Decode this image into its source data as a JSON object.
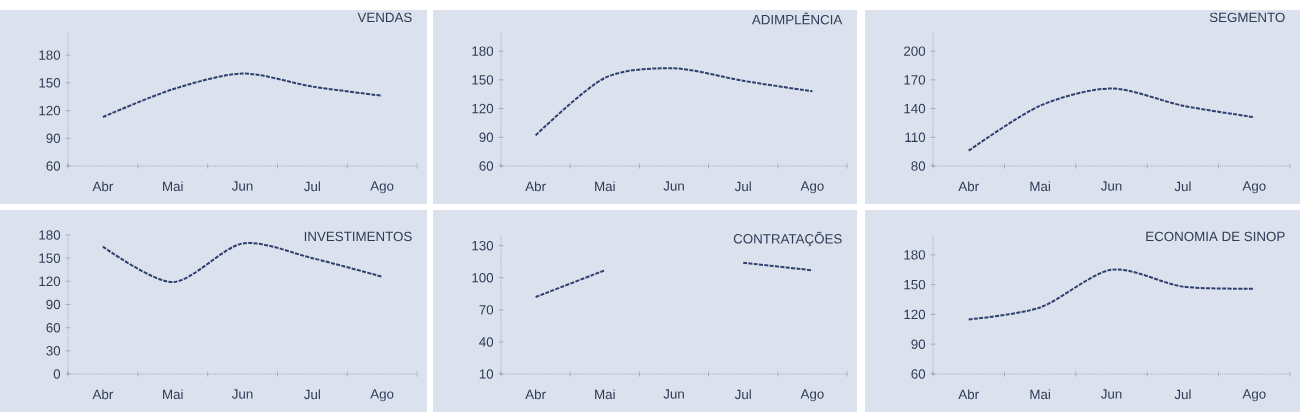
{
  "chart_data": [
    {
      "type": "line",
      "title": "VENDAS",
      "categories": [
        "Abr",
        "Mai",
        "Jun",
        "Jul",
        "Ago"
      ],
      "values": [
        113,
        143,
        160,
        146,
        136
      ],
      "color": "#2f3f6e",
      "line_style": "dashed",
      "ylim": [
        60,
        205
      ],
      "yticks": [
        60,
        90,
        120,
        150,
        180
      ]
    },
    {
      "type": "line",
      "title": "ADIMPLÊNCIA",
      "categories": [
        "Abr",
        "Mai",
        "Jun",
        "Jul",
        "Ago"
      ],
      "values": [
        92,
        152,
        162,
        149,
        138
      ],
      "color": "#2f3f6e",
      "line_style": "dashed",
      "ylim": [
        60,
        200
      ],
      "yticks": [
        60,
        90,
        120,
        150,
        180
      ]
    },
    {
      "type": "line",
      "title": "SEGMENTO",
      "categories": [
        "Abr",
        "Mai",
        "Jun",
        "Jul",
        "Ago"
      ],
      "values": [
        96,
        143,
        161,
        143,
        131
      ],
      "color": "#2f3f6e",
      "line_style": "dashed",
      "ylim": [
        80,
        220
      ],
      "yticks": [
        80,
        110,
        140,
        170,
        200
      ]
    },
    {
      "type": "line",
      "title": "INVESTIMENTOS",
      "categories": [
        "Abr",
        "Mai",
        "Jun",
        "Jul",
        "Ago"
      ],
      "values": [
        165,
        119,
        169,
        150,
        126
      ],
      "color": "#2f3f6e",
      "line_style": "dashed",
      "ylim": [
        0,
        180
      ],
      "yticks": [
        0,
        30,
        60,
        90,
        120,
        150,
        180
      ]
    },
    {
      "type": "line",
      "title": "CONTRATAÇÕES",
      "categories": [
        "Abr",
        "Mai",
        "Jun",
        "Jul",
        "Ago"
      ],
      "values": [
        82,
        107,
        null,
        114,
        107
      ],
      "color": "#2f3f6e",
      "line_style": "dashed",
      "ylim": [
        10,
        140
      ],
      "yticks": [
        10,
        40,
        70,
        100,
        130
      ]
    },
    {
      "type": "line",
      "title": "ECONOMIA DE SINOP",
      "categories": [
        "Abr",
        "Mai",
        "Jun",
        "Jul",
        "Ago"
      ],
      "values": [
        115,
        127,
        165,
        148,
        146
      ],
      "color": "#2f3f6e",
      "line_style": "dashed",
      "ylim": [
        60,
        200
      ],
      "yticks": [
        60,
        90,
        120,
        150,
        180
      ]
    }
  ]
}
